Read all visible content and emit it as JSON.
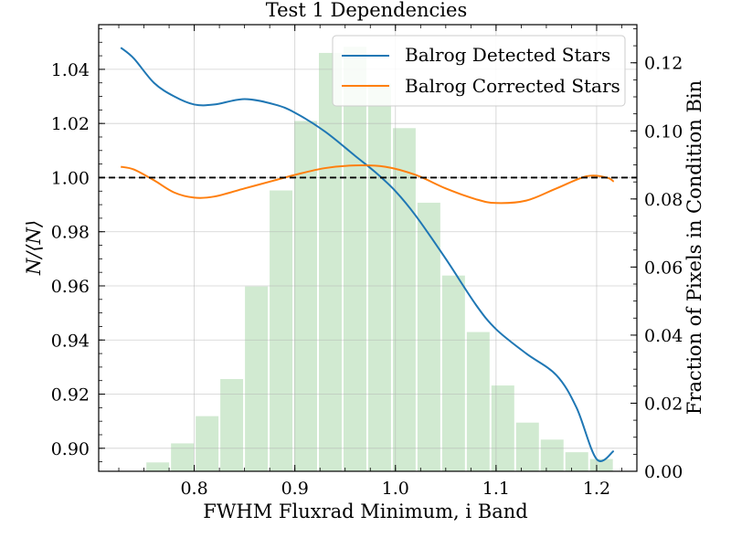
{
  "chart_data": {
    "type": "line",
    "title": "Test 1 Dependencies",
    "xlabel": "FWHM Fluxrad Minimum, i Band",
    "ylabel": "N/⟨N⟩",
    "y2label": "Fraction of Pixels in Condition Bin",
    "xlim": [
      0.705,
      1.24
    ],
    "ylim": [
      0.8915,
      1.0565
    ],
    "y2lim": [
      0.0,
      0.1312
    ],
    "xticks": [
      "0.8",
      "0.9",
      "1.0",
      "1.1",
      "1.2"
    ],
    "yticks": [
      "0.90",
      "0.92",
      "0.94",
      "0.96",
      "0.98",
      "1.00",
      "1.02",
      "1.04"
    ],
    "y2ticks": [
      "0.00",
      "0.02",
      "0.04",
      "0.06",
      "0.08",
      "0.10",
      "0.12"
    ],
    "grid": true,
    "legend_position": "top-right",
    "reference_line": {
      "y": 1.0,
      "style": "dashed",
      "color": "#000000"
    },
    "series": [
      {
        "name": "Balrog Detected Stars",
        "color": "#1f77b4",
        "x": [
          0.727,
          0.74,
          0.76,
          0.78,
          0.8,
          0.82,
          0.85,
          0.88,
          0.9,
          0.93,
          0.96,
          0.98,
          1.0,
          1.02,
          1.05,
          1.08,
          1.1,
          1.13,
          1.16,
          1.18,
          1.2,
          1.217
        ],
        "y": [
          1.048,
          1.044,
          1.035,
          1.03,
          1.027,
          1.027,
          1.029,
          1.027,
          1.024,
          1.017,
          1.008,
          1.002,
          0.995,
          0.986,
          0.97,
          0.953,
          0.944,
          0.935,
          0.927,
          0.915,
          0.896,
          0.899
        ]
      },
      {
        "name": "Balrog Corrected Stars",
        "color": "#ff7f0e",
        "x": [
          0.727,
          0.74,
          0.76,
          0.78,
          0.8,
          0.82,
          0.85,
          0.88,
          0.9,
          0.93,
          0.96,
          0.99,
          1.02,
          1.05,
          1.08,
          1.1,
          1.13,
          1.16,
          1.19,
          1.21,
          1.217
        ],
        "y": [
          1.004,
          1.003,
          0.999,
          0.9945,
          0.9926,
          0.993,
          0.996,
          0.999,
          1.001,
          1.0035,
          1.0045,
          1.004,
          1.001,
          0.996,
          0.992,
          0.9906,
          0.9915,
          0.996,
          1.0005,
          1.0,
          0.9985
        ]
      }
    ],
    "histogram": {
      "color": "#2ca02c",
      "alpha": 0.22,
      "bin_edges": [
        0.727,
        0.7515,
        0.776,
        0.8005,
        0.825,
        0.8495,
        0.874,
        0.8985,
        0.923,
        0.9475,
        0.972,
        0.9965,
        1.021,
        1.0455,
        1.07,
        1.0945,
        1.119,
        1.1435,
        1.168,
        1.1925,
        1.217
      ],
      "fractions": [
        0.0,
        0.0026,
        0.0082,
        0.0162,
        0.0271,
        0.0543,
        0.0825,
        0.1029,
        0.1229,
        0.1247,
        0.1139,
        0.1008,
        0.0789,
        0.0575,
        0.0409,
        0.0252,
        0.0143,
        0.0093,
        0.0056,
        0.0036
      ]
    }
  }
}
